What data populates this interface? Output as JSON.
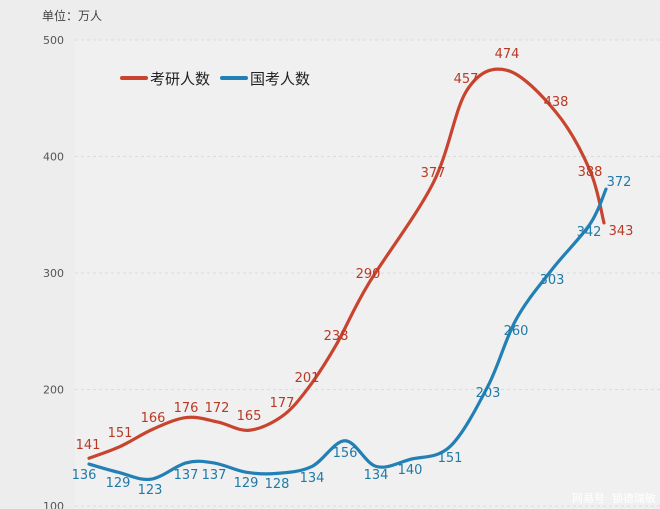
{
  "chart_data": {
    "type": "line",
    "unit_label": "单位：万人",
    "ylim": [
      100,
      500
    ],
    "yticks": [
      100,
      200,
      300,
      400,
      500
    ],
    "grid": true,
    "legend_position": "top-left",
    "series": [
      {
        "name": "考研人数",
        "color": "#c9442f",
        "values": [
          141,
          151,
          166,
          176,
          172,
          165,
          177,
          201,
          238,
          290,
          377,
          457,
          474,
          438,
          388,
          343
        ]
      },
      {
        "name": "国考人数",
        "color": "#2280b5",
        "values": [
          136,
          129,
          123,
          137,
          137,
          129,
          128,
          134,
          156,
          134,
          140,
          151,
          203,
          260,
          303,
          342,
          372
        ]
      }
    ]
  },
  "watermark": {
    "source": "网易号",
    "author": "锁德瑞敏"
  }
}
